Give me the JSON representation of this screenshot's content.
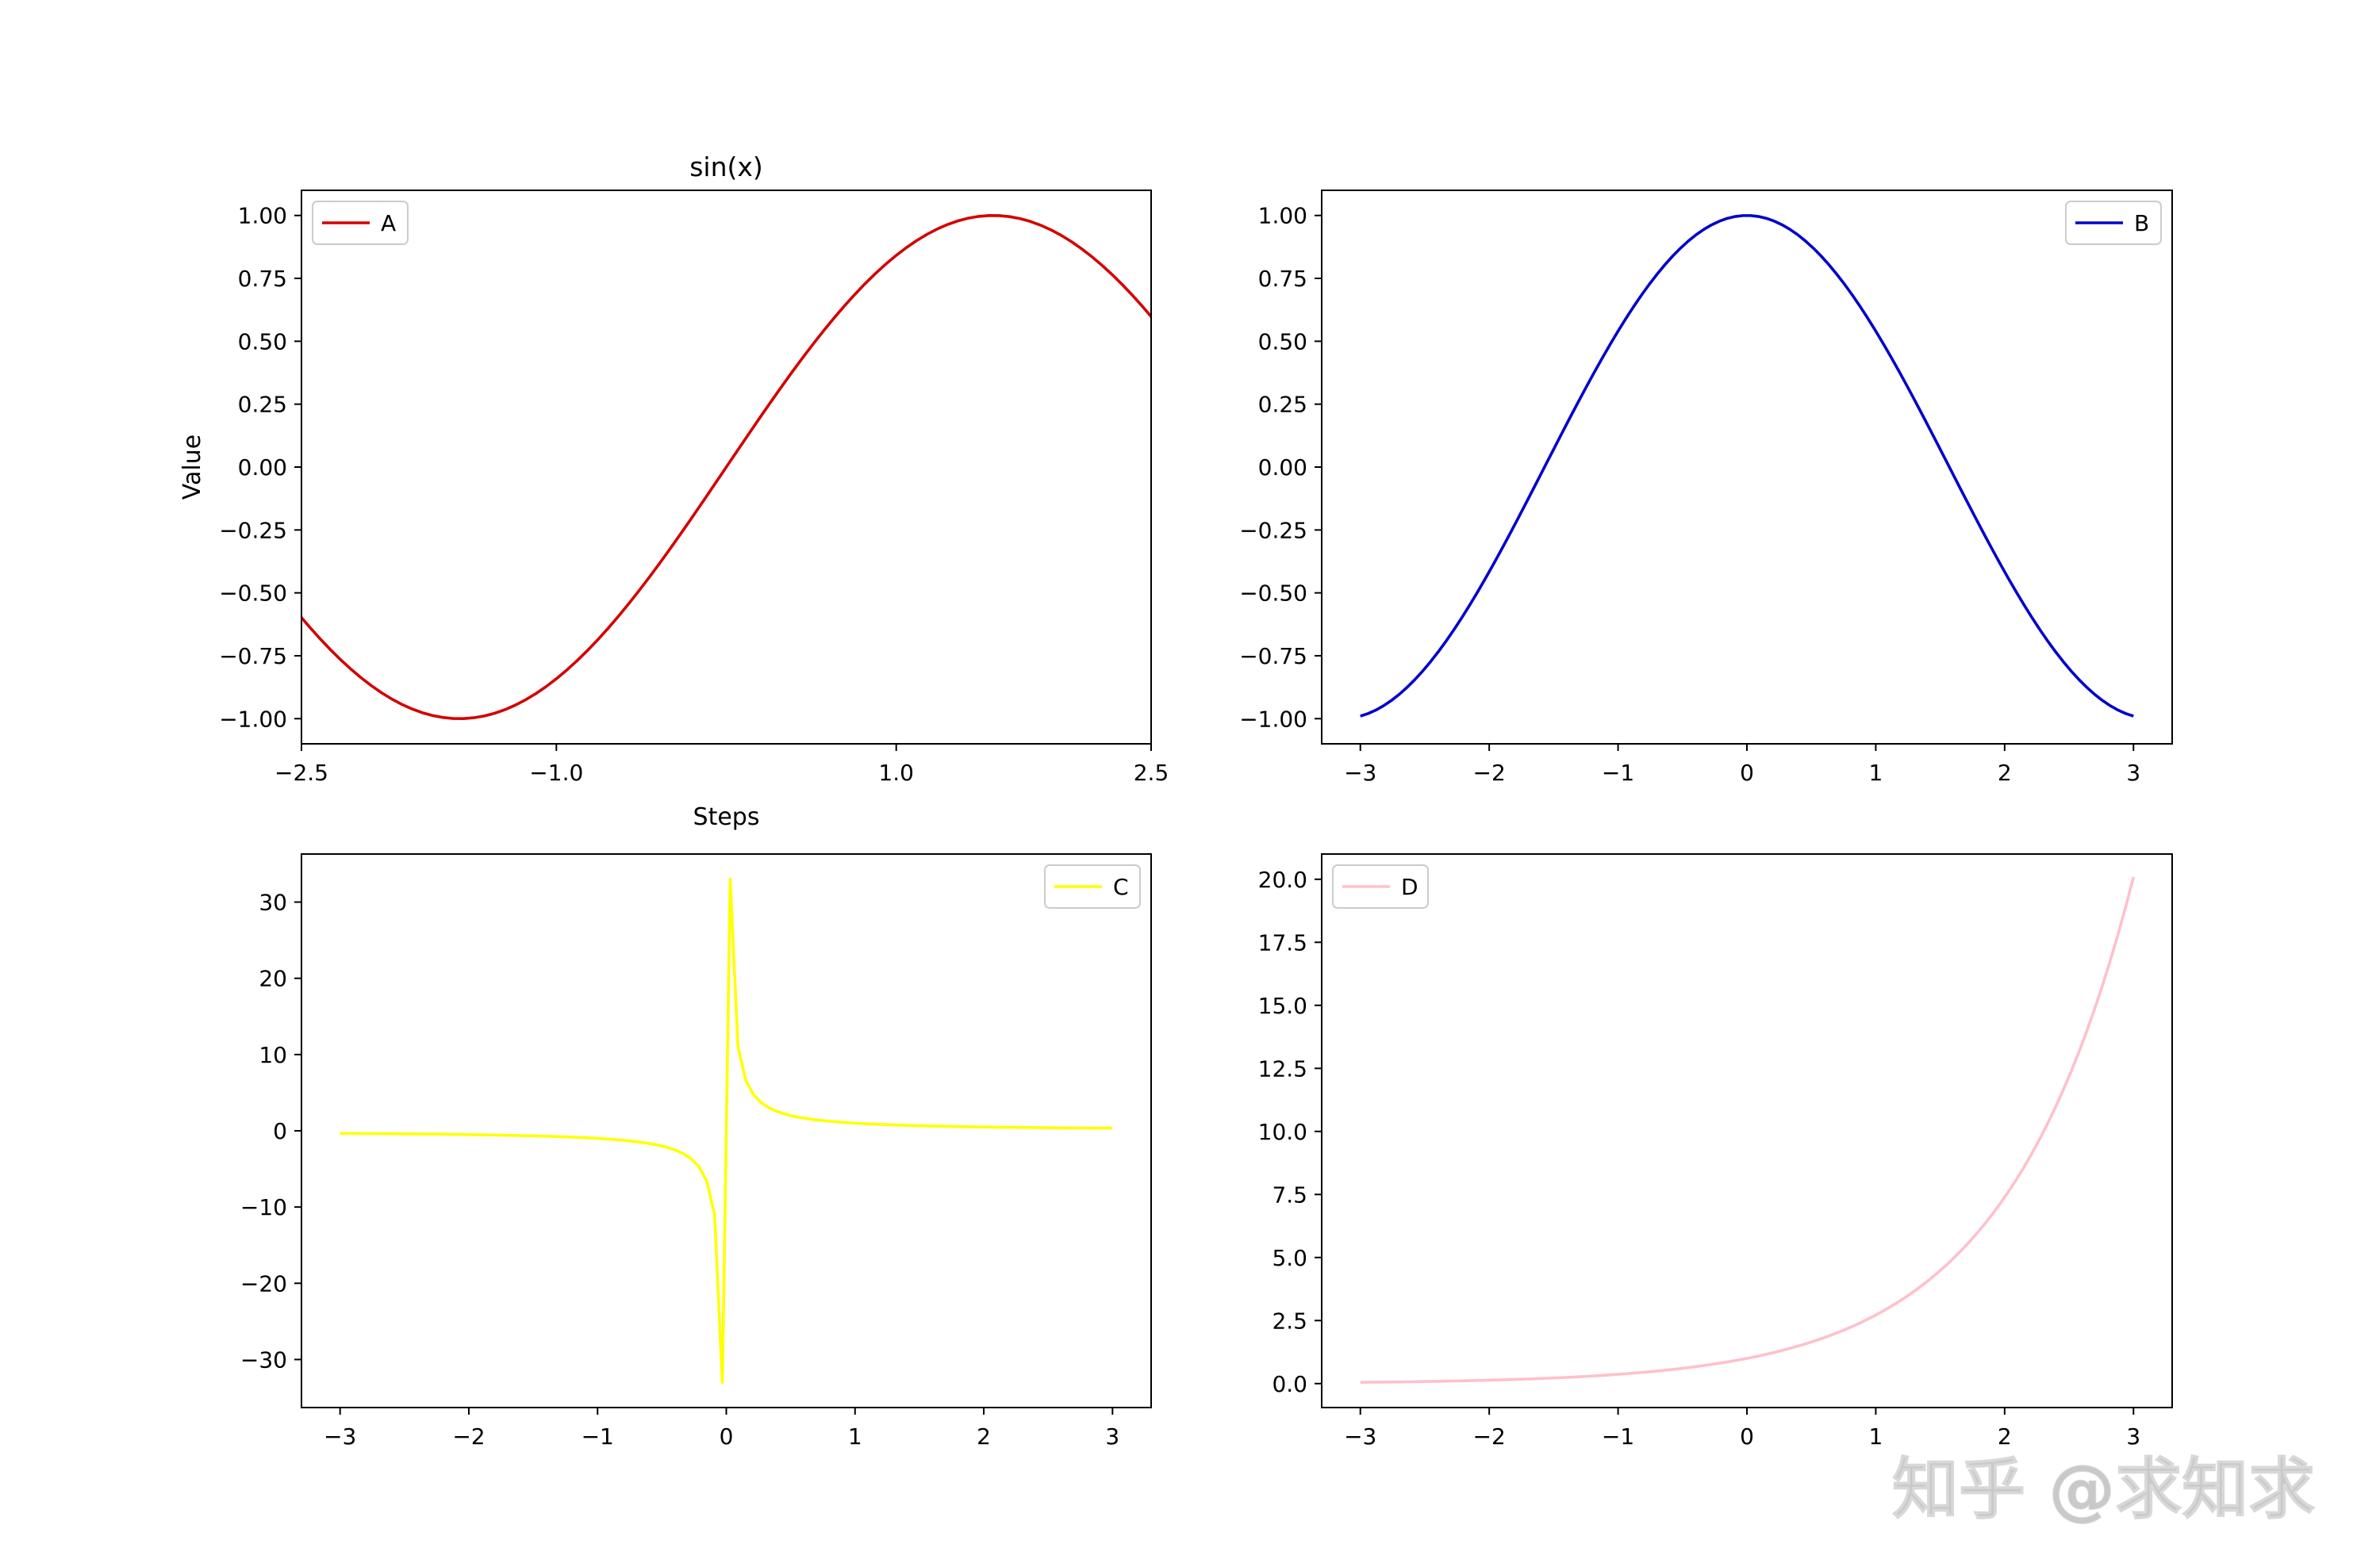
{
  "figure": {
    "background": "#ffffff",
    "tick_font_size_px": 28
  },
  "watermark": {
    "text": "知乎 @求知求",
    "color": "#c9c9c9"
  },
  "chart_data": [
    {
      "id": "A",
      "type": "line",
      "title": "sin(x)",
      "xlabel": "Steps",
      "ylabel": "Value",
      "function": "sin",
      "xlim": [
        -2.5,
        2.5
      ],
      "ylim": [
        -1.1,
        1.1
      ],
      "x_ticks": [
        -2.5,
        -1.0,
        1.0,
        2.5
      ],
      "x_tick_labels": [
        "−2.5",
        "−1.0",
        "1.0",
        "2.5"
      ],
      "y_ticks": [
        -1.0,
        -0.75,
        -0.5,
        -0.25,
        0.0,
        0.25,
        0.5,
        0.75,
        1.0
      ],
      "y_tick_labels": [
        "−1.00",
        "−0.75",
        "−0.50",
        "−0.25",
        "0.00",
        "0.25",
        "0.50",
        "0.75",
        "1.00"
      ],
      "grid": false,
      "legend_position": "upper-left",
      "series": [
        {
          "name": "A",
          "color": "#d40000",
          "x_range": [
            -3,
            3
          ],
          "n_points": 100
        }
      ]
    },
    {
      "id": "B",
      "type": "line",
      "title": "",
      "xlabel": "",
      "ylabel": "",
      "function": "cos",
      "xlim": [
        -3.3,
        3.3
      ],
      "ylim": [
        -1.1,
        1.1
      ],
      "x_ticks": [
        -3,
        -2,
        -1,
        0,
        1,
        2,
        3
      ],
      "x_tick_labels": [
        "−3",
        "−2",
        "−1",
        "0",
        "1",
        "2",
        "3"
      ],
      "y_ticks": [
        -1.0,
        -0.75,
        -0.5,
        -0.25,
        0.0,
        0.25,
        0.5,
        0.75,
        1.0
      ],
      "y_tick_labels": [
        "−1.00",
        "−0.75",
        "−0.50",
        "−0.25",
        "0.00",
        "0.25",
        "0.50",
        "0.75",
        "1.00"
      ],
      "grid": false,
      "legend_position": "upper-right",
      "series": [
        {
          "name": "B",
          "color": "#0000cc",
          "x_range": [
            -3,
            3
          ],
          "n_points": 100
        }
      ]
    },
    {
      "id": "C",
      "type": "line",
      "title": "",
      "xlabel": "",
      "ylabel": "",
      "function": "1/x",
      "xlim": [
        -3.3,
        3.3
      ],
      "ylim": [
        -36.3,
        36.3
      ],
      "x_ticks": [
        -3,
        -2,
        -1,
        0,
        1,
        2,
        3
      ],
      "x_tick_labels": [
        "−3",
        "−2",
        "−1",
        "0",
        "1",
        "2",
        "3"
      ],
      "y_ticks": [
        -30,
        -20,
        -10,
        0,
        10,
        20,
        30
      ],
      "y_tick_labels": [
        "−30",
        "−20",
        "−10",
        "0",
        "10",
        "20",
        "30"
      ],
      "grid": false,
      "legend_position": "upper-right",
      "series": [
        {
          "name": "C",
          "color": "#ffff00",
          "x_range": [
            -3,
            3
          ],
          "n_points": 100
        }
      ]
    },
    {
      "id": "D",
      "type": "line",
      "title": "",
      "xlabel": "",
      "ylabel": "",
      "function": "exp",
      "xlim": [
        -3.3,
        3.3
      ],
      "ylim": [
        -0.95,
        21.0
      ],
      "x_ticks": [
        -3,
        -2,
        -1,
        0,
        1,
        2,
        3
      ],
      "x_tick_labels": [
        "−3",
        "−2",
        "−1",
        "0",
        "1",
        "2",
        "3"
      ],
      "y_ticks": [
        0.0,
        2.5,
        5.0,
        7.5,
        10.0,
        12.5,
        15.0,
        17.5,
        20.0
      ],
      "y_tick_labels": [
        "0.0",
        "2.5",
        "5.0",
        "7.5",
        "10.0",
        "12.5",
        "15.0",
        "17.5",
        "20.0"
      ],
      "grid": false,
      "legend_position": "upper-left",
      "series": [
        {
          "name": "D",
          "color": "#ffc0cb",
          "x_range": [
            -3,
            3
          ],
          "n_points": 100
        }
      ]
    }
  ]
}
